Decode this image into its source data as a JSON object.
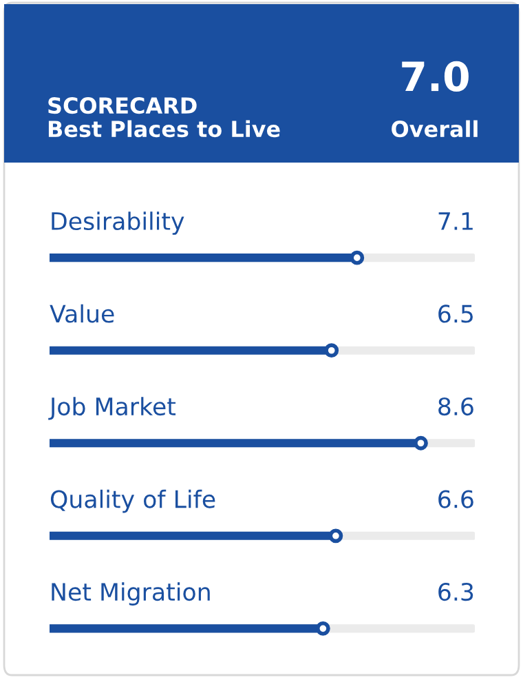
{
  "chart_data": {
    "type": "bar",
    "orientation": "horizontal",
    "title": "SCORECARD",
    "subtitle": "Best Places to Live",
    "annotations": [
      "7.0",
      "Overall"
    ],
    "categories": [
      "Desirability",
      "Value",
      "Job Market",
      "Quality of Life",
      "Net Migration"
    ],
    "values": [
      7.1,
      6.5,
      8.6,
      6.6,
      6.3
    ],
    "color": "#1a4fa0",
    "xlim": [
      0,
      10
    ],
    "marker": "circle",
    "data_labels": true
  }
}
